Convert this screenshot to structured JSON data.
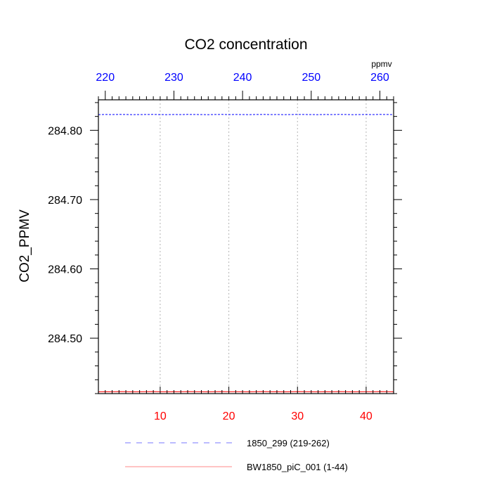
{
  "chart_data": {
    "type": "line",
    "title": "CO2 concentration",
    "ylabel": "CO2_PPMV",
    "top_axis_unit": "ppmv",
    "xlim": [
      1,
      44
    ],
    "top_xlim": [
      219,
      262
    ],
    "ylim": [
      284.42,
      284.844
    ],
    "x_ticks": [
      10,
      20,
      30,
      40
    ],
    "x_tick_labels": [
      "10",
      "20",
      "30",
      "40"
    ],
    "top_ticks": [
      220,
      230,
      240,
      250,
      260
    ],
    "top_tick_labels": [
      "220",
      "230",
      "240",
      "250",
      "260"
    ],
    "y_ticks": [
      284.5,
      284.6,
      284.7,
      284.8
    ],
    "y_tick_labels": [
      "284.50",
      "284.60",
      "284.70",
      "284.80"
    ],
    "grid": "vertical dotted at major x ticks",
    "legend_position": "bottom",
    "series": [
      {
        "name": "1850_299 (219-262)",
        "axis": "top",
        "color": "#0000ff",
        "style": "dashed",
        "x": [
          219,
          220,
          221,
          222,
          223,
          224,
          225,
          226,
          227,
          228,
          229,
          230,
          231,
          232,
          233,
          234,
          235,
          236,
          237,
          238,
          239,
          240,
          241,
          242,
          243,
          244,
          245,
          246,
          247,
          248,
          249,
          250,
          251,
          252,
          253,
          254,
          255,
          256,
          257,
          258,
          259,
          260,
          261,
          262
        ],
        "values": [
          284.8226,
          284.8228,
          284.8227,
          284.8229,
          284.8228,
          284.8226,
          284.8227,
          284.8228,
          284.8229,
          284.8227,
          284.8226,
          284.8228,
          284.8227,
          284.8229,
          284.8228,
          284.8227,
          284.8226,
          284.8228,
          284.8229,
          284.8227,
          284.8228,
          284.8227,
          284.8226,
          284.8228,
          284.8229,
          284.8227,
          284.8228,
          284.8226,
          284.8227,
          284.8229,
          284.8228,
          284.8227,
          284.8226,
          284.8228,
          284.8227,
          284.8229,
          284.8228,
          284.8226,
          284.8227,
          284.8228,
          284.8227,
          284.8229,
          284.8228,
          284.8227
        ]
      },
      {
        "name": "BW1850_piC_001 (1-44)",
        "axis": "bottom",
        "color": "#ff0000",
        "style": "solid",
        "x": [
          1,
          2,
          3,
          4,
          5,
          6,
          7,
          8,
          9,
          10,
          11,
          12,
          13,
          14,
          15,
          16,
          17,
          18,
          19,
          20,
          21,
          22,
          23,
          24,
          25,
          26,
          27,
          28,
          29,
          30,
          31,
          32,
          33,
          34,
          35,
          36,
          37,
          38,
          39,
          40,
          41,
          42,
          43,
          44
        ],
        "values": [
          284.4226,
          284.4228,
          284.4227,
          284.4229,
          284.4228,
          284.4226,
          284.4227,
          284.4228,
          284.4229,
          284.4227,
          284.4226,
          284.4228,
          284.4227,
          284.4229,
          284.4228,
          284.4227,
          284.4226,
          284.4228,
          284.4229,
          284.4227,
          284.4228,
          284.4227,
          284.4226,
          284.4228,
          284.4229,
          284.4227,
          284.4228,
          284.4226,
          284.4227,
          284.4229,
          284.4228,
          284.4227,
          284.4226,
          284.4228,
          284.4227,
          284.4229,
          284.4228,
          284.4226,
          284.4227,
          284.4228,
          284.4227,
          284.4229,
          284.4228,
          284.4227
        ]
      }
    ]
  }
}
